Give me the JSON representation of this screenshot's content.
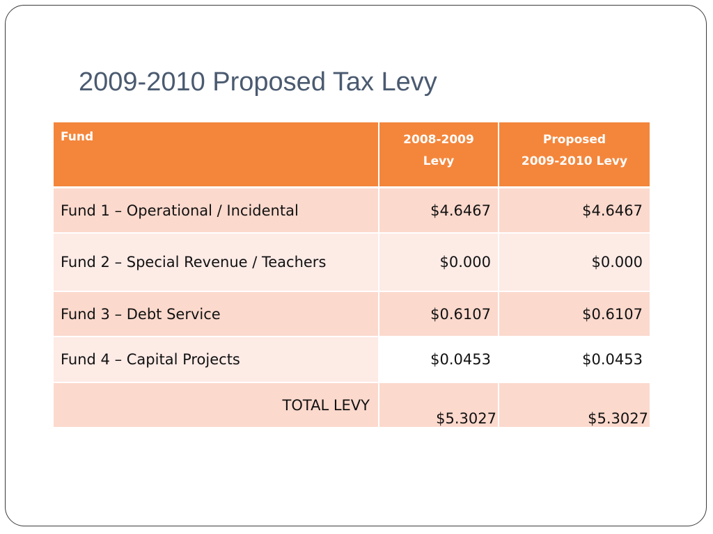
{
  "slide": {
    "title": "2009-2010 Proposed Tax Levy"
  },
  "table": {
    "headers": {
      "fund": "Fund",
      "levy_2008_line1": "2008-2009",
      "levy_2008_line2": "Levy",
      "proposed_line1": "Proposed",
      "proposed_line2": "2009-2010 Levy"
    },
    "rows": [
      {
        "fund": "Fund 1 – Operational / Incidental",
        "levy_2008_2009": "$4.6467",
        "proposed_2009_2010": "$4.6467"
      },
      {
        "fund": "Fund 2 – Special Revenue / Teachers",
        "levy_2008_2009": "$0.000",
        "proposed_2009_2010": "$0.000"
      },
      {
        "fund": "Fund 3 – Debt Service",
        "levy_2008_2009": "$0.6107",
        "proposed_2009_2010": "$0.6107"
      },
      {
        "fund": "Fund 4 – Capital Projects",
        "levy_2008_2009": "$0.0453",
        "proposed_2009_2010": "$0.0453"
      }
    ],
    "total": {
      "label": "TOTAL LEVY",
      "levy_2008_2009": "$5.3027",
      "proposed_2009_2010": "$5.3027"
    }
  },
  "colors": {
    "header_bg": "#f4863b",
    "row_dark": "#fcd9cd",
    "row_light": "#fdebe6",
    "title": "#4a5a70"
  }
}
